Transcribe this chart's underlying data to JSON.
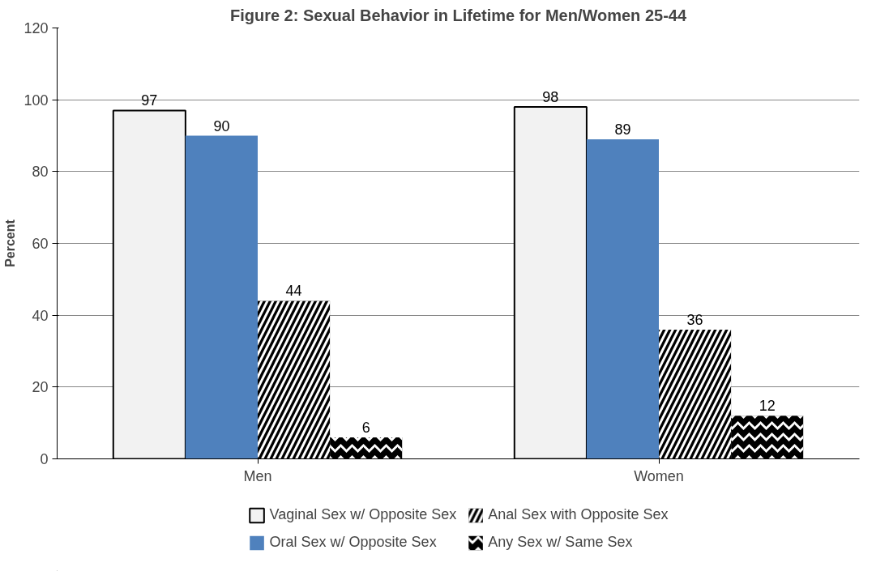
{
  "chart_data": {
    "type": "bar",
    "title": "Figure 2: Sexual Behavior in Lifetime for Men/Women 25-44",
    "ylabel": "Percent",
    "categories": [
      "Men",
      "Women"
    ],
    "series": [
      {
        "name": "Vaginal Sex w/ Opposite Sex",
        "color": "#f2f2f2",
        "values": [
          97,
          98
        ]
      },
      {
        "name": "Oral Sex w/ Opposite Sex",
        "color": "#4f81bd",
        "values": [
          90,
          89
        ]
      },
      {
        "name": "Anal Sex with Opposite Sex",
        "color": "#000000",
        "values": [
          44,
          36
        ]
      },
      {
        "name": "Any Sex w/ Same Sex",
        "color": "#000000",
        "values": [
          6,
          12
        ]
      }
    ],
    "ylim": [
      0,
      120
    ],
    "yticks": [
      0,
      20,
      40,
      60,
      80,
      100,
      120
    ],
    "grid": "y",
    "legend": "bottom",
    "data_labels": true
  }
}
